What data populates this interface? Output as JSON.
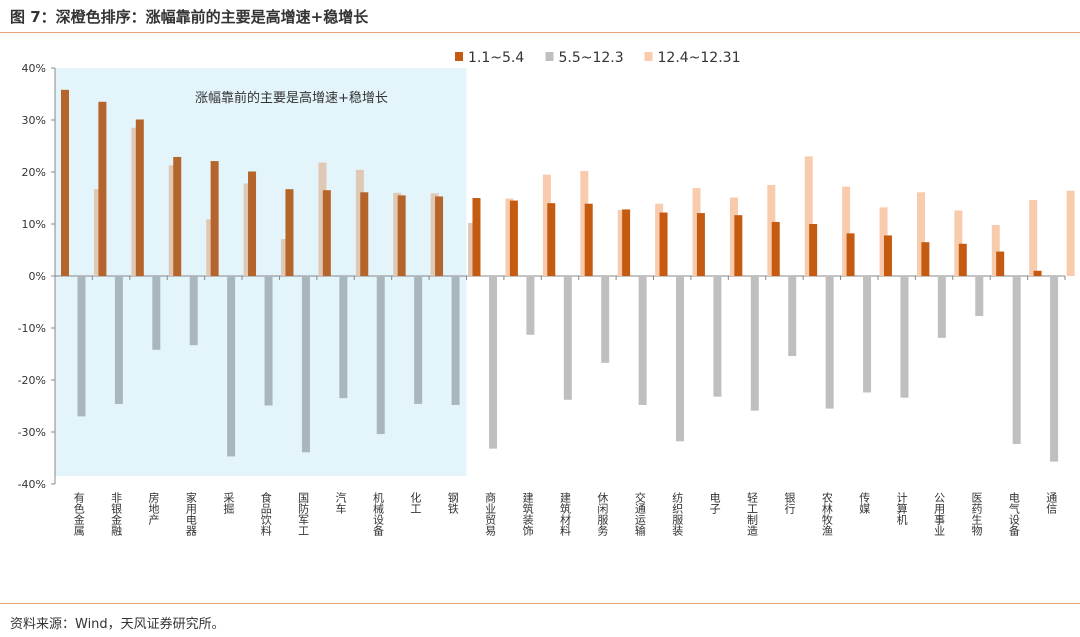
{
  "title": "图 7：深橙色排序：涨幅靠前的主要是高增速+稳增长",
  "source": "资料来源：Wind，天风证券研究所。",
  "chart_data": {
    "type": "bar",
    "annotation": "涨幅靠前的主要是高增速+稳增长",
    "highlight_count": 11,
    "ylim": [
      -40,
      40
    ],
    "yticks": [
      40,
      30,
      20,
      10,
      0,
      -10,
      -20,
      -30,
      -40
    ],
    "ytick_labels": [
      "40%",
      "30%",
      "20%",
      "10%",
      "0%",
      "-10%",
      "-20%",
      "-30%",
      "-40%"
    ],
    "legend_position": "top-right",
    "categories": [
      "有色金属",
      "非银金融",
      "房地产",
      "家用电器",
      "采掘",
      "食品饮料",
      "国防军工",
      "汽车",
      "机械设备",
      "化工",
      "钢铁",
      "商业贸易",
      "建筑装饰",
      "建筑材料",
      "休闲服务",
      "交通运输",
      "纺织服装",
      "电子",
      "轻工制造",
      "银行",
      "农林牧渔",
      "传媒",
      "计算机",
      "公用事业",
      "医药生物",
      "电气设备",
      "通信"
    ],
    "series": [
      {
        "name": "1.1~5.4",
        "color": "#c55a11",
        "highlight_color": "#b5652b",
        "values": [
          35.8,
          33.5,
          30.1,
          22.9,
          22.1,
          20.1,
          16.7,
          16.5,
          16.1,
          15.5,
          15.3,
          15.0,
          14.5,
          14.0,
          13.9,
          12.8,
          12.2,
          12.1,
          11.7,
          10.4,
          10.0,
          8.2,
          7.8,
          6.5,
          6.2,
          4.7,
          1.0
        ]
      },
      {
        "name": "5.5~12.3",
        "color": "#bfbfbf",
        "highlight_color": "#a9b7bd",
        "values": [
          -27.0,
          -24.6,
          -14.2,
          -13.3,
          -34.7,
          -24.9,
          -33.9,
          -23.5,
          -30.4,
          -24.6,
          -24.8,
          -33.2,
          -11.3,
          -23.8,
          -16.7,
          -24.8,
          -31.8,
          -23.2,
          -25.9,
          -15.4,
          -25.5,
          -22.4,
          -23.4,
          -11.9,
          -7.7,
          -32.3,
          -35.7
        ]
      },
      {
        "name": "12.4~12.31",
        "color": "#f8cbad",
        "highlight_color": "#e0c9b4",
        "values": [
          16.7,
          28.5,
          21.3,
          10.9,
          17.8,
          7.1,
          21.8,
          20.4,
          16.0,
          15.9,
          10.2,
          14.9,
          19.5,
          20.2,
          12.7,
          13.9,
          16.9,
          15.1,
          17.5,
          23.0,
          17.2,
          13.2,
          16.1,
          12.6,
          9.8,
          14.6,
          16.4
        ]
      }
    ]
  }
}
